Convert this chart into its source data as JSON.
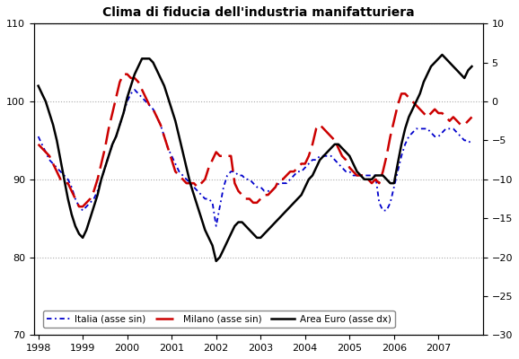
{
  "title": "Clima di fiducia dell'industria manifatturiera",
  "ylim_left": [
    70,
    110
  ],
  "ylim_right": [
    -30,
    10
  ],
  "yticks_left": [
    70,
    80,
    90,
    100,
    110
  ],
  "yticks_right": [
    -30,
    -25,
    -20,
    -15,
    -10,
    -5,
    0,
    5,
    10
  ],
  "xticks": [
    1998,
    1999,
    2000,
    2001,
    2002,
    2003,
    2004,
    2005,
    2006,
    2007
  ],
  "xlim": [
    1997.9,
    2008.0
  ],
  "color_italia": "#0000CC",
  "color_milano": "#CC0000",
  "color_euro": "#000000",
  "legend_labels": [
    "Italia (asse sin)",
    "Milano (asse sin)",
    "Area Euro (asse dx)"
  ],
  "gridcolor": "#AAAAAA",
  "italia_x": [
    1998.0,
    1998.083,
    1998.167,
    1998.25,
    1998.333,
    1998.417,
    1998.5,
    1998.583,
    1998.667,
    1998.75,
    1998.833,
    1998.917,
    1999.0,
    1999.083,
    1999.167,
    1999.25,
    1999.333,
    1999.417,
    1999.5,
    1999.583,
    1999.667,
    1999.75,
    1999.833,
    1999.917,
    2000.0,
    2000.083,
    2000.167,
    2000.25,
    2000.333,
    2000.417,
    2000.5,
    2000.583,
    2000.667,
    2000.75,
    2000.833,
    2000.917,
    2001.0,
    2001.083,
    2001.167,
    2001.25,
    2001.333,
    2001.417,
    2001.5,
    2001.583,
    2001.667,
    2001.75,
    2001.833,
    2001.917,
    2002.0,
    2002.083,
    2002.167,
    2002.25,
    2002.333,
    2002.417,
    2002.5,
    2002.583,
    2002.667,
    2002.75,
    2002.833,
    2002.917,
    2003.0,
    2003.083,
    2003.167,
    2003.25,
    2003.333,
    2003.417,
    2003.5,
    2003.583,
    2003.667,
    2003.75,
    2003.833,
    2003.917,
    2004.0,
    2004.083,
    2004.167,
    2004.25,
    2004.333,
    2004.417,
    2004.5,
    2004.583,
    2004.667,
    2004.75,
    2004.833,
    2004.917,
    2005.0,
    2005.083,
    2005.167,
    2005.25,
    2005.333,
    2005.417,
    2005.5,
    2005.583,
    2005.667,
    2005.75,
    2005.833,
    2005.917,
    2006.0,
    2006.083,
    2006.167,
    2006.25,
    2006.333,
    2006.417,
    2006.5,
    2006.583,
    2006.667,
    2006.75,
    2006.833,
    2006.917,
    2007.0,
    2007.083,
    2007.167,
    2007.25,
    2007.333,
    2007.417,
    2007.5,
    2007.583,
    2007.667,
    2007.75
  ],
  "italia_y": [
    95.5,
    94.5,
    93.5,
    92.5,
    92.0,
    91.5,
    91.0,
    90.5,
    90.0,
    89.0,
    87.5,
    86.5,
    86.0,
    86.5,
    87.0,
    87.5,
    88.5,
    90.0,
    91.5,
    93.0,
    94.5,
    95.5,
    97.0,
    98.5,
    100.0,
    101.0,
    101.5,
    101.0,
    100.5,
    100.0,
    99.5,
    99.0,
    98.0,
    97.0,
    95.5,
    94.0,
    93.0,
    92.0,
    91.0,
    90.5,
    90.0,
    89.5,
    89.0,
    88.5,
    88.0,
    87.5,
    87.5,
    87.0,
    84.0,
    86.5,
    89.0,
    90.5,
    91.0,
    91.0,
    90.5,
    90.5,
    90.0,
    90.0,
    89.5,
    89.0,
    89.0,
    88.5,
    88.5,
    88.5,
    89.0,
    89.5,
    89.5,
    89.5,
    90.0,
    90.5,
    91.0,
    91.0,
    91.5,
    92.0,
    92.5,
    92.5,
    93.0,
    93.0,
    93.0,
    93.0,
    92.5,
    92.0,
    91.5,
    91.0,
    91.0,
    90.5,
    90.5,
    90.5,
    90.5,
    90.5,
    90.5,
    90.5,
    87.0,
    86.0,
    86.0,
    87.0,
    89.0,
    91.0,
    93.0,
    94.5,
    95.5,
    96.0,
    96.5,
    96.5,
    96.5,
    96.5,
    96.0,
    95.5,
    95.5,
    96.0,
    96.5,
    96.5,
    96.5,
    96.0,
    95.5,
    95.0,
    95.0,
    94.5
  ],
  "milano_x": [
    1998.0,
    1998.083,
    1998.167,
    1998.25,
    1998.333,
    1998.417,
    1998.5,
    1998.583,
    1998.667,
    1998.75,
    1998.833,
    1998.917,
    1999.0,
    1999.083,
    1999.167,
    1999.25,
    1999.333,
    1999.417,
    1999.5,
    1999.583,
    1999.667,
    1999.75,
    1999.833,
    1999.917,
    2000.0,
    2000.083,
    2000.167,
    2000.25,
    2000.333,
    2000.417,
    2000.5,
    2000.583,
    2000.667,
    2000.75,
    2000.833,
    2000.917,
    2001.0,
    2001.083,
    2001.167,
    2001.25,
    2001.333,
    2001.417,
    2001.5,
    2001.583,
    2001.667,
    2001.75,
    2001.833,
    2001.917,
    2002.0,
    2002.083,
    2002.167,
    2002.25,
    2002.333,
    2002.417,
    2002.5,
    2002.583,
    2002.667,
    2002.75,
    2002.833,
    2002.917,
    2003.0,
    2003.083,
    2003.167,
    2003.25,
    2003.333,
    2003.417,
    2003.5,
    2003.583,
    2003.667,
    2003.75,
    2003.833,
    2003.917,
    2004.0,
    2004.083,
    2004.167,
    2004.25,
    2004.333,
    2004.417,
    2004.5,
    2004.583,
    2004.667,
    2004.75,
    2004.833,
    2004.917,
    2005.0,
    2005.083,
    2005.167,
    2005.25,
    2005.333,
    2005.417,
    2005.5,
    2005.583,
    2005.667,
    2005.75,
    2005.833,
    2005.917,
    2006.0,
    2006.083,
    2006.167,
    2006.25,
    2006.333,
    2006.417,
    2006.5,
    2006.583,
    2006.667,
    2006.75,
    2006.833,
    2006.917,
    2007.0,
    2007.083,
    2007.167,
    2007.25,
    2007.333,
    2007.417,
    2007.5,
    2007.583,
    2007.667,
    2007.75
  ],
  "milano_y": [
    94.5,
    94.0,
    93.5,
    93.0,
    92.0,
    91.0,
    90.0,
    89.5,
    89.5,
    88.5,
    87.5,
    86.5,
    86.5,
    87.0,
    87.5,
    88.5,
    90.0,
    92.0,
    94.0,
    96.5,
    98.5,
    100.5,
    102.5,
    103.5,
    103.5,
    103.0,
    103.0,
    102.5,
    101.5,
    100.5,
    99.5,
    99.0,
    98.0,
    97.0,
    95.5,
    94.0,
    92.5,
    91.0,
    90.5,
    90.0,
    89.5,
    89.5,
    89.5,
    89.0,
    89.5,
    90.0,
    91.5,
    92.5,
    93.5,
    93.0,
    93.0,
    93.0,
    93.0,
    89.5,
    88.5,
    88.0,
    87.5,
    87.5,
    87.0,
    87.0,
    87.5,
    88.0,
    88.0,
    88.5,
    89.0,
    90.0,
    90.0,
    90.5,
    91.0,
    91.0,
    91.5,
    92.0,
    92.0,
    93.0,
    94.5,
    96.5,
    97.0,
    96.5,
    96.0,
    95.5,
    95.0,
    94.0,
    93.0,
    92.5,
    91.5,
    91.0,
    90.5,
    90.5,
    90.5,
    90.0,
    89.5,
    90.0,
    89.5,
    91.0,
    93.0,
    95.5,
    97.5,
    99.5,
    101.0,
    101.0,
    100.5,
    100.0,
    99.5,
    99.0,
    98.5,
    98.0,
    98.5,
    99.0,
    98.5,
    98.5,
    98.0,
    97.5,
    98.0,
    97.5,
    97.0,
    97.0,
    97.5,
    98.0
  ],
  "euro_x": [
    1998.0,
    1998.083,
    1998.167,
    1998.25,
    1998.333,
    1998.417,
    1998.5,
    1998.583,
    1998.667,
    1998.75,
    1998.833,
    1998.917,
    1999.0,
    1999.083,
    1999.167,
    1999.25,
    1999.333,
    1999.417,
    1999.5,
    1999.583,
    1999.667,
    1999.75,
    1999.833,
    1999.917,
    2000.0,
    2000.083,
    2000.167,
    2000.25,
    2000.333,
    2000.417,
    2000.5,
    2000.583,
    2000.667,
    2000.75,
    2000.833,
    2000.917,
    2001.0,
    2001.083,
    2001.167,
    2001.25,
    2001.333,
    2001.417,
    2001.5,
    2001.583,
    2001.667,
    2001.75,
    2001.833,
    2001.917,
    2002.0,
    2002.083,
    2002.167,
    2002.25,
    2002.333,
    2002.417,
    2002.5,
    2002.583,
    2002.667,
    2002.75,
    2002.833,
    2002.917,
    2003.0,
    2003.083,
    2003.167,
    2003.25,
    2003.333,
    2003.417,
    2003.5,
    2003.583,
    2003.667,
    2003.75,
    2003.833,
    2003.917,
    2004.0,
    2004.083,
    2004.167,
    2004.25,
    2004.333,
    2004.417,
    2004.5,
    2004.583,
    2004.667,
    2004.75,
    2004.833,
    2004.917,
    2005.0,
    2005.083,
    2005.167,
    2005.25,
    2005.333,
    2005.417,
    2005.5,
    2005.583,
    2005.667,
    2005.75,
    2005.833,
    2005.917,
    2006.0,
    2006.083,
    2006.167,
    2006.25,
    2006.333,
    2006.417,
    2006.5,
    2006.583,
    2006.667,
    2006.75,
    2006.833,
    2006.917,
    2007.0,
    2007.083,
    2007.167,
    2007.25,
    2007.333,
    2007.417,
    2007.5,
    2007.583,
    2007.667,
    2007.75
  ],
  "euro_y": [
    2.0,
    1.0,
    0.0,
    -1.5,
    -3.0,
    -5.0,
    -7.5,
    -10.0,
    -12.5,
    -14.5,
    -16.0,
    -17.0,
    -17.5,
    -16.5,
    -15.0,
    -13.5,
    -12.0,
    -10.0,
    -8.5,
    -7.0,
    -5.5,
    -4.5,
    -3.0,
    -1.5,
    0.5,
    2.0,
    3.5,
    4.5,
    5.5,
    5.5,
    5.5,
    5.0,
    4.0,
    3.0,
    2.0,
    0.5,
    -1.0,
    -2.5,
    -4.5,
    -6.5,
    -8.5,
    -10.5,
    -12.0,
    -13.5,
    -15.0,
    -16.5,
    -17.5,
    -18.5,
    -20.5,
    -20.0,
    -19.0,
    -18.0,
    -17.0,
    -16.0,
    -15.5,
    -15.5,
    -16.0,
    -16.5,
    -17.0,
    -17.5,
    -17.5,
    -17.0,
    -16.5,
    -16.0,
    -15.5,
    -15.0,
    -14.5,
    -14.0,
    -13.5,
    -13.0,
    -12.5,
    -12.0,
    -11.0,
    -10.0,
    -9.5,
    -8.5,
    -7.5,
    -7.0,
    -6.5,
    -6.0,
    -5.5,
    -5.5,
    -6.0,
    -6.5,
    -7.0,
    -8.0,
    -9.0,
    -9.5,
    -10.0,
    -10.0,
    -10.0,
    -9.5,
    -9.5,
    -9.5,
    -10.0,
    -10.5,
    -10.5,
    -8.0,
    -5.5,
    -3.5,
    -2.0,
    -1.0,
    0.0,
    1.0,
    2.5,
    3.5,
    4.5,
    5.0,
    5.5,
    6.0,
    5.5,
    5.0,
    4.5,
    4.0,
    3.5,
    3.0,
    4.0,
    4.5
  ]
}
